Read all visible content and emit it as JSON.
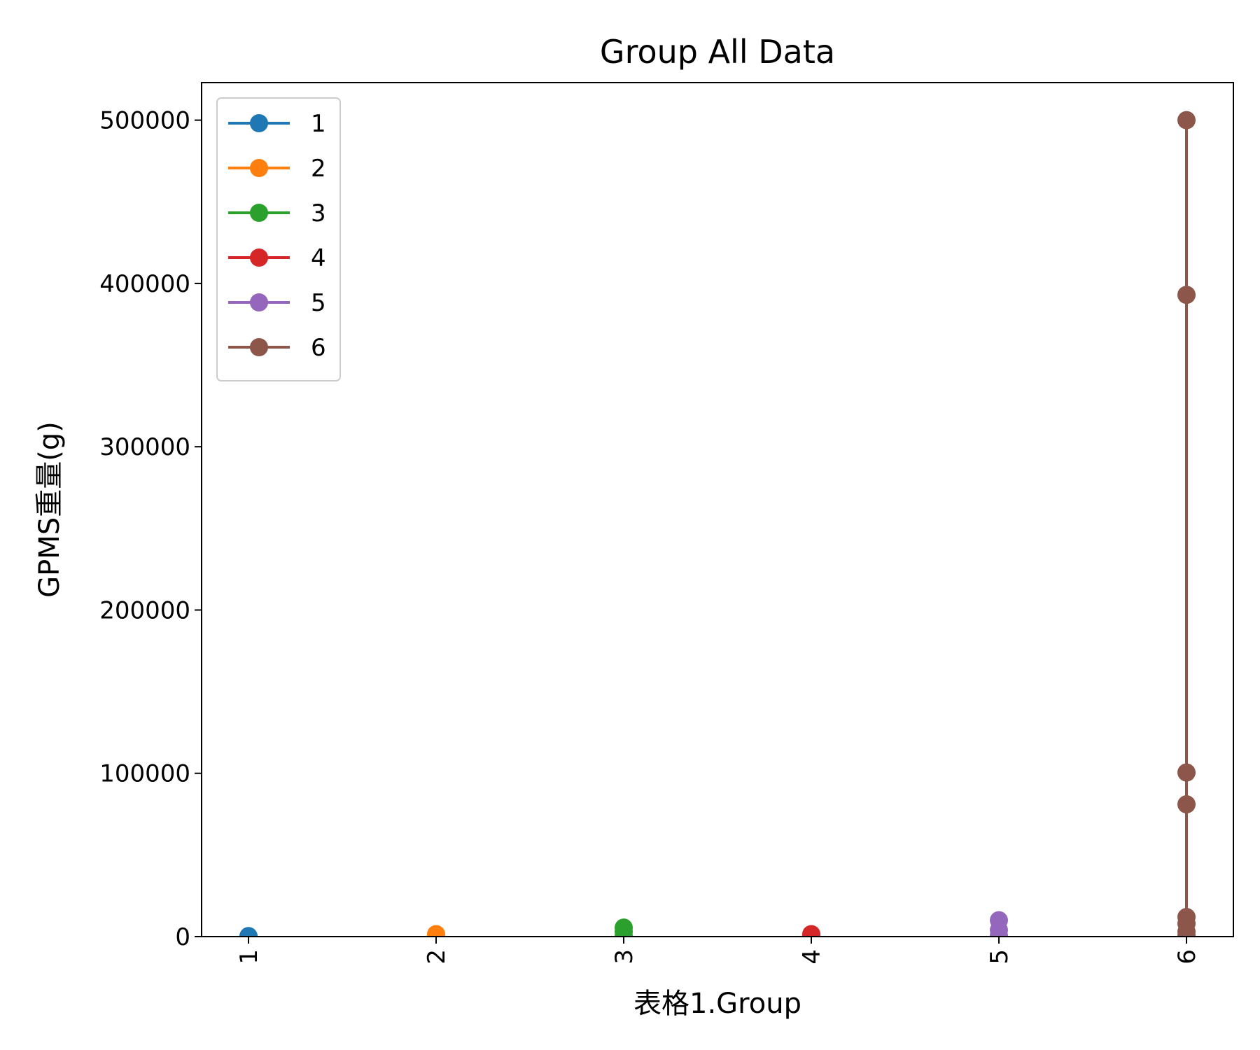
{
  "chart_data": {
    "type": "line",
    "title": "Group All Data",
    "xlabel": "表格1.Group",
    "ylabel": "GPMS重量(g)",
    "categories": [
      "1",
      "2",
      "3",
      "4",
      "5",
      "6"
    ],
    "yticks": [
      "0",
      "100000",
      "200000",
      "300000",
      "400000",
      "500000"
    ],
    "ylim": [
      0,
      523000
    ],
    "xlim": [
      0.75,
      6.25
    ],
    "grid": false,
    "legend_position": "top-left",
    "series": [
      {
        "name": "1",
        "color": "#1f77b4",
        "x": [
          1,
          1
        ],
        "y": [
          0,
          300
        ]
      },
      {
        "name": "2",
        "color": "#ff7f0e",
        "x": [
          2,
          2
        ],
        "y": [
          200,
          1500
        ]
      },
      {
        "name": "3",
        "color": "#2ca02c",
        "x": [
          3,
          3,
          3
        ],
        "y": [
          200,
          3000,
          5500
        ]
      },
      {
        "name": "4",
        "color": "#d62728",
        "x": [
          4,
          4
        ],
        "y": [
          300,
          1500
        ]
      },
      {
        "name": "5",
        "color": "#9467bd",
        "x": [
          5,
          5,
          5
        ],
        "y": [
          500,
          4000,
          10000
        ]
      },
      {
        "name": "6",
        "color": "#8c564b",
        "x": [
          6,
          6,
          6,
          6,
          6,
          6,
          6,
          6
        ],
        "y": [
          500000,
          393000,
          100500,
          81000,
          12000,
          8000,
          3000,
          500
        ]
      }
    ]
  }
}
